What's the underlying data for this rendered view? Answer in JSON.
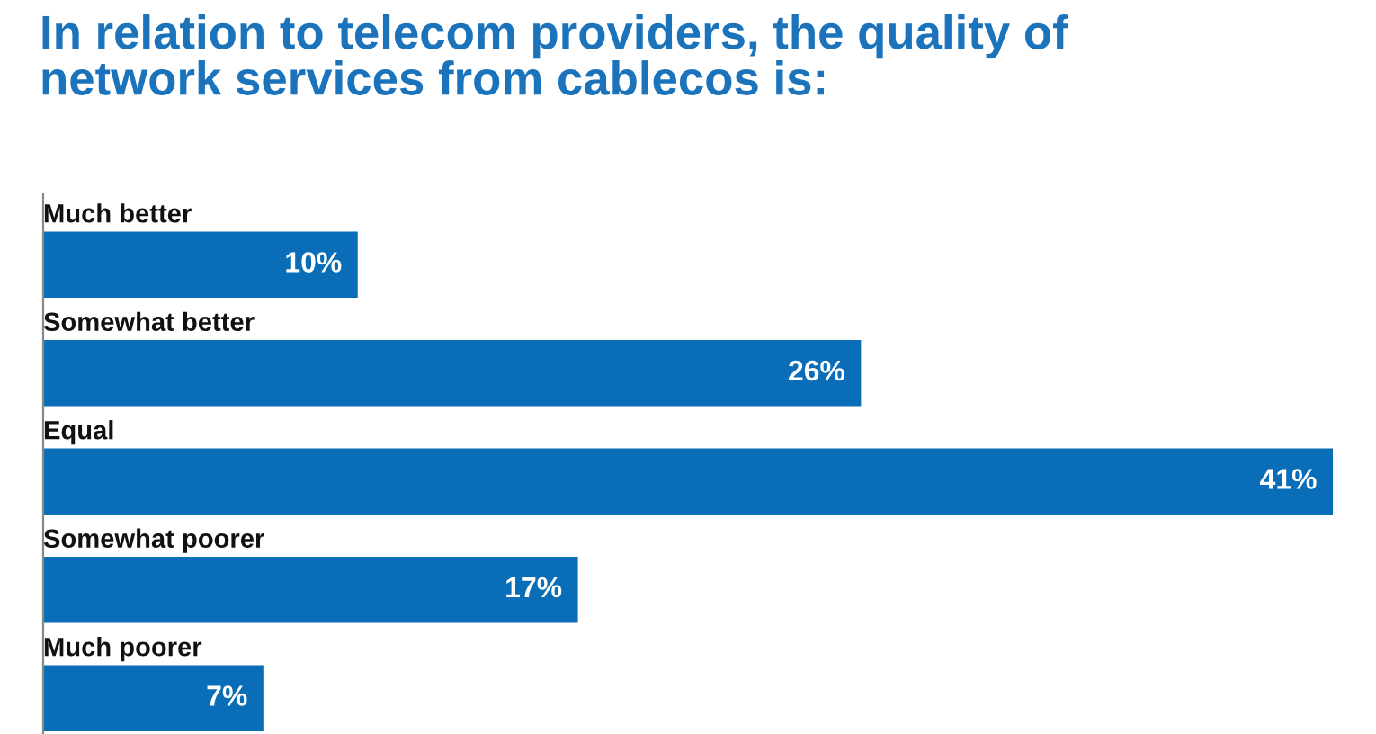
{
  "chart_data": {
    "type": "bar",
    "orientation": "horizontal",
    "title": "In relation to telecom providers, the quality of\nnetwork services from cablecos is:",
    "categories": [
      "Much better",
      "Somewhat better",
      "Equal",
      "Somewhat poorer",
      "Much poorer"
    ],
    "values": [
      10,
      26,
      41,
      17,
      7
    ],
    "value_labels": [
      "10%",
      "26%",
      "41%",
      "17%",
      "7%"
    ],
    "color": "#0a6db8"
  }
}
